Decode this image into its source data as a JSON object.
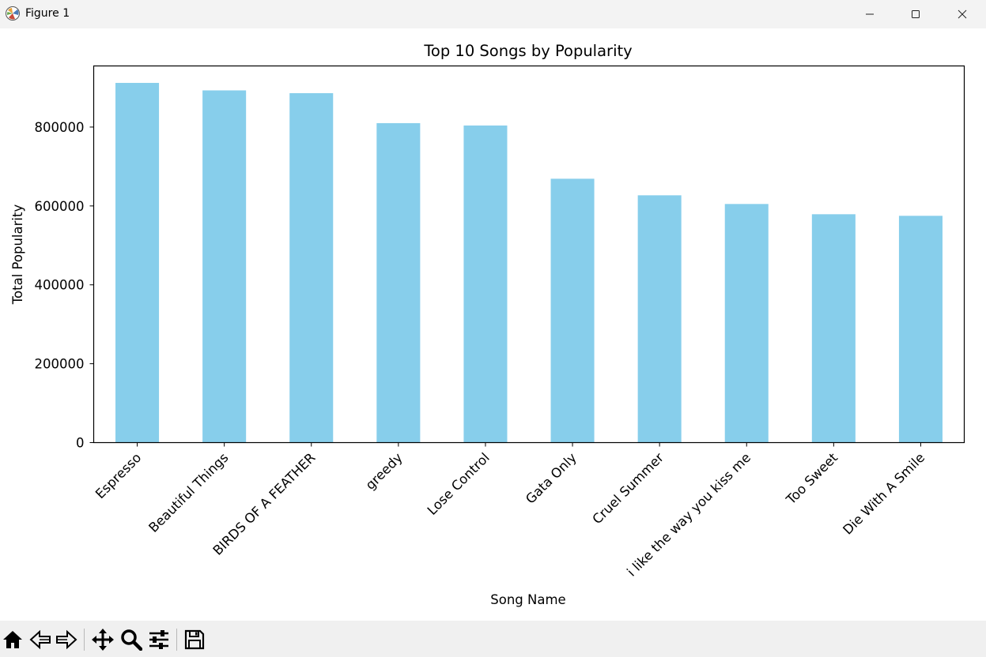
{
  "window": {
    "title": "Figure 1"
  },
  "toolbar": {
    "buttons": [
      "home-icon",
      "back-icon",
      "forward-icon",
      "pan-icon",
      "zoom-icon",
      "configure-subplots-icon",
      "save-icon"
    ]
  },
  "colors": {
    "bar": "#87ceeb",
    "titlebar": "#f3f3f3",
    "toolbar": "#f0f0f0"
  },
  "chart_data": {
    "type": "bar",
    "title": "Top 10 Songs by Popularity",
    "xlabel": "Song Name",
    "ylabel": "Total Popularity",
    "categories": [
      "Espresso",
      "Beautiful Things",
      "BIRDS OF A FEATHER",
      "greedy",
      "Lose Control",
      "Gata Only",
      "Cruel Summer",
      "i like the way you kiss me",
      "Too Sweet",
      "Die With A Smile"
    ],
    "values": [
      912000,
      893000,
      886000,
      810000,
      804000,
      669000,
      627000,
      605000,
      579000,
      575000
    ],
    "yticks": [
      0,
      200000,
      400000,
      600000,
      800000
    ],
    "ytick_labels": [
      "0",
      "200000",
      "400000",
      "600000",
      "800000"
    ],
    "ylim": [
      0,
      955000
    ],
    "grid": false,
    "legend": false,
    "xtick_rotation": 45
  }
}
